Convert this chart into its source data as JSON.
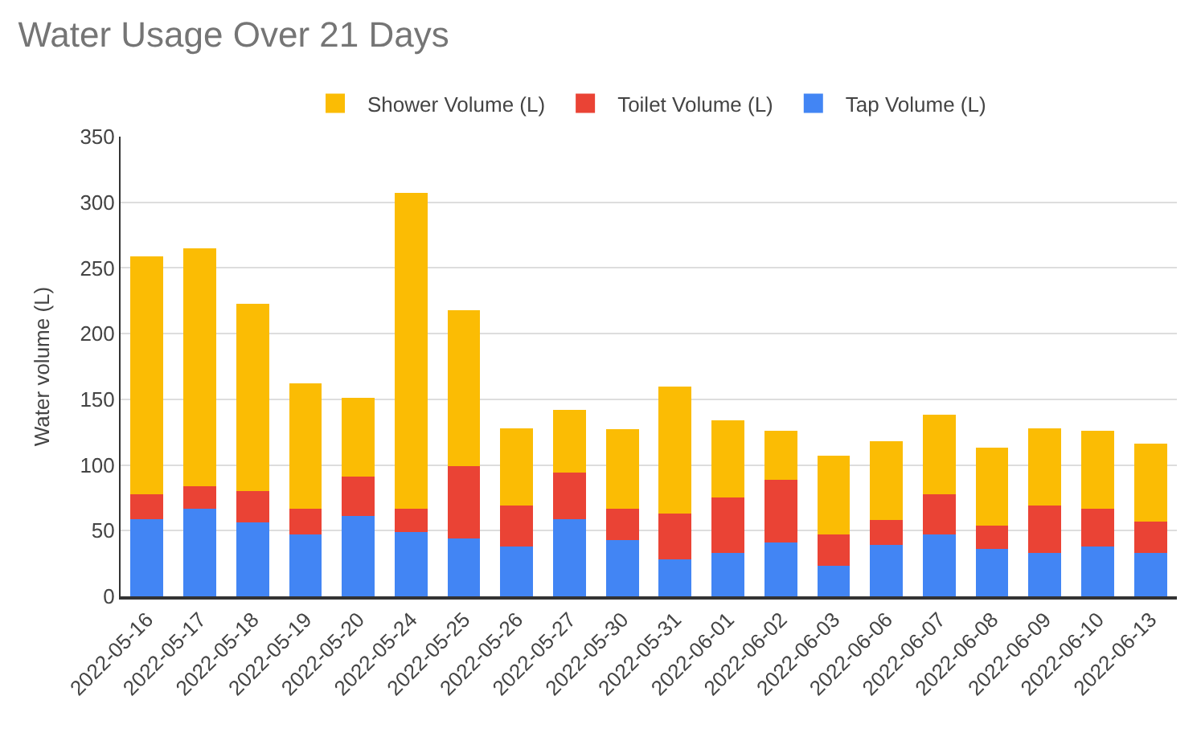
{
  "chart_data": {
    "type": "bar",
    "title": "Water Usage Over 21 Days",
    "ylabel": "Water volume (L)",
    "categories": [
      "2022-05-16",
      "2022-05-17",
      "2022-05-18",
      "2022-05-19",
      "2022-05-20",
      "2022-05-24",
      "2022-05-25",
      "2022-05-26",
      "2022-05-27",
      "2022-05-30",
      "2022-05-31",
      "2022-06-01",
      "2022-06-02",
      "2022-06-03",
      "2022-06-06",
      "2022-06-07",
      "2022-06-08",
      "2022-06-09",
      "2022-06-10",
      "2022-06-13"
    ],
    "series": [
      {
        "name": "Tap Volume (L)",
        "color": "#4285f4",
        "values": [
          59,
          67,
          56,
          47,
          61,
          49,
          44,
          38,
          59,
          43,
          28,
          33,
          41,
          23,
          39,
          47,
          36,
          33,
          38,
          33
        ]
      },
      {
        "name": "Toilet Volume (L)",
        "color": "#ea4335",
        "values": [
          19,
          17,
          24,
          20,
          30,
          18,
          55,
          31,
          35,
          24,
          35,
          42,
          48,
          24,
          19,
          31,
          18,
          36,
          29,
          24
        ]
      },
      {
        "name": "Shower Volume (L)",
        "color": "#fbbc04",
        "values": [
          181,
          181,
          143,
          95,
          60,
          240,
          119,
          59,
          48,
          60,
          97,
          59,
          37,
          60,
          60,
          60,
          59,
          59,
          59,
          59
        ]
      }
    ],
    "stacked": true,
    "ylim": [
      0,
      350
    ],
    "yticks": [
      0,
      50,
      100,
      150,
      200,
      250,
      300,
      350
    ],
    "grid": "y",
    "legend": "top"
  }
}
